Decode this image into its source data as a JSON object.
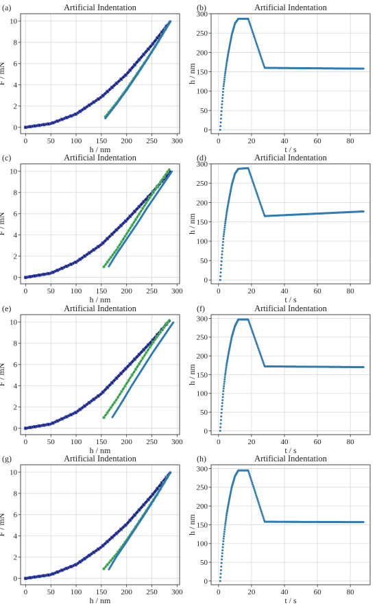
{
  "figure": {
    "panels": [
      {
        "label": "(a)",
        "title": "Artificial Indentation"
      },
      {
        "label": "(b)",
        "title": "Artificial Indentation"
      },
      {
        "label": "(c)",
        "title": "Artificial Indentation"
      },
      {
        "label": "(d)",
        "title": "Artificial Indentation"
      },
      {
        "label": "(e)",
        "title": "Artificial Indentation"
      },
      {
        "label": "(f)",
        "title": "Artificial Indentation"
      },
      {
        "label": "(g)",
        "title": "Artificial Indentation"
      },
      {
        "label": "(h)",
        "title": "Artificial Indentation"
      }
    ]
  },
  "colors": {
    "loading": "#1a237e",
    "loading_marker": "#5060c8",
    "unloading_fit": "#2e9a4a",
    "unloading_fit_marker": "#8ad17a",
    "measured": "#2a78b8",
    "time_series": "#2f7cb5",
    "grid": "#d9d9d9"
  },
  "chart_data": [
    {
      "panel": "(a)",
      "type": "scatter",
      "title": "Artificial Indentation",
      "xlabel": "h / nm",
      "ylabel": "F / mN",
      "xlim": [
        -10,
        305
      ],
      "ylim": [
        -0.6,
        10.7
      ],
      "xticks": [
        0,
        50,
        100,
        150,
        200,
        250,
        300
      ],
      "yticks": [
        0,
        2,
        4,
        6,
        8,
        10
      ],
      "grid": true,
      "series": [
        {
          "role": "loading",
          "x": [
            0,
            50,
            100,
            150,
            200,
            250,
            287
          ],
          "y": [
            0,
            0.35,
            1.25,
            2.85,
            5.0,
            7.75,
            10.0
          ]
        },
        {
          "role": "unloading_fit",
          "x": [
            158,
            180,
            200,
            220,
            240,
            260,
            287
          ],
          "y": [
            1.0,
            2.3,
            3.6,
            5.0,
            6.4,
            7.9,
            10.0
          ]
        },
        {
          "role": "measured",
          "x": [
            158,
            180,
            200,
            220,
            240,
            260,
            287
          ],
          "y": [
            0.85,
            2.2,
            3.5,
            4.9,
            6.35,
            7.85,
            10.0
          ]
        }
      ]
    },
    {
      "panel": "(b)",
      "type": "scatter",
      "title": "Artificial Indentation",
      "xlabel": "t / s",
      "ylabel": "h / nm",
      "xlim": [
        -4.5,
        92
      ],
      "ylim": [
        -10,
        300
      ],
      "xticks": [
        0,
        20,
        40,
        60,
        80
      ],
      "yticks": [
        0,
        50,
        100,
        150,
        200,
        250,
        300
      ],
      "grid": true,
      "series": [
        {
          "role": "time_series",
          "x": [
            1,
            2,
            3,
            4,
            5,
            6,
            8,
            10,
            12,
            18,
            28,
            88
          ],
          "y": [
            0,
            60,
            110,
            145,
            175,
            200,
            245,
            275,
            287,
            287,
            160,
            158
          ]
        }
      ]
    },
    {
      "panel": "(c)",
      "type": "scatter",
      "title": "Artificial Indentation",
      "xlabel": "h / nm",
      "ylabel": "F / mN",
      "xlim": [
        -10,
        305
      ],
      "ylim": [
        -0.6,
        10.7
      ],
      "xticks": [
        0,
        50,
        100,
        150,
        200,
        250,
        300
      ],
      "yticks": [
        0,
        2,
        4,
        6,
        8,
        10
      ],
      "grid": true,
      "series": [
        {
          "role": "loading",
          "x": [
            0,
            50,
            100,
            150,
            200,
            250,
            287
          ],
          "y": [
            0,
            0.4,
            1.45,
            3.1,
            5.4,
            7.95,
            10.0
          ]
        },
        {
          "role": "unloading_fit",
          "x": [
            155,
            180,
            200,
            220,
            240,
            260,
            285
          ],
          "y": [
            1.0,
            2.6,
            4.1,
            5.6,
            7.1,
            8.5,
            10.2
          ]
        },
        {
          "role": "measured",
          "x": [
            165,
            180,
            200,
            220,
            240,
            260,
            290
          ],
          "y": [
            1.05,
            2.2,
            3.6,
            5.0,
            6.5,
            7.9,
            10.0
          ]
        }
      ]
    },
    {
      "panel": "(d)",
      "type": "scatter",
      "title": "Artificial Indentation",
      "xlabel": "t / s",
      "ylabel": "h / nm",
      "xlim": [
        -4.5,
        92
      ],
      "ylim": [
        -10,
        300
      ],
      "xticks": [
        0,
        20,
        40,
        60,
        80
      ],
      "yticks": [
        0,
        50,
        100,
        150,
        200,
        250,
        300
      ],
      "grid": true,
      "series": [
        {
          "role": "time_series",
          "x": [
            1,
            2,
            3,
            4,
            5,
            6,
            8,
            10,
            12,
            18,
            28,
            88
          ],
          "y": [
            0,
            60,
            110,
            145,
            175,
            200,
            245,
            275,
            287,
            289,
            165,
            177
          ]
        }
      ]
    },
    {
      "panel": "(e)",
      "type": "scatter",
      "title": "Artificial Indentation",
      "xlabel": "h / nm",
      "ylabel": "F / mN",
      "xlim": [
        -10,
        305
      ],
      "ylim": [
        -0.6,
        10.7
      ],
      "xticks": [
        0,
        50,
        100,
        150,
        200,
        250,
        300
      ],
      "yticks": [
        0,
        2,
        4,
        6,
        8,
        10
      ],
      "grid": true,
      "series": [
        {
          "role": "loading",
          "x": [
            0,
            50,
            100,
            150,
            200,
            250,
            286
          ],
          "y": [
            0,
            0.4,
            1.5,
            3.25,
            5.7,
            8.2,
            10.2
          ]
        },
        {
          "role": "unloading_fit",
          "x": [
            155,
            180,
            200,
            220,
            240,
            260,
            285
          ],
          "y": [
            1.0,
            2.7,
            4.2,
            5.7,
            7.2,
            8.6,
            10.2
          ]
        },
        {
          "role": "measured",
          "x": [
            172,
            190,
            210,
            230,
            250,
            270,
            293
          ],
          "y": [
            1.05,
            2.4,
            4.0,
            5.5,
            7.0,
            8.4,
            10.0
          ]
        }
      ]
    },
    {
      "panel": "(f)",
      "type": "scatter",
      "title": "Artificial Indentation",
      "xlabel": "t / s",
      "ylabel": "h / nm",
      "xlim": [
        -4.5,
        92
      ],
      "ylim": [
        -10,
        310
      ],
      "xticks": [
        0,
        20,
        40,
        60,
        80
      ],
      "yticks": [
        0,
        50,
        100,
        150,
        200,
        250,
        300
      ],
      "grid": true,
      "series": [
        {
          "role": "time_series",
          "x": [
            1,
            2,
            3,
            4,
            5,
            6,
            8,
            10,
            12,
            18,
            28,
            88
          ],
          "y": [
            0,
            60,
            110,
            148,
            180,
            205,
            250,
            280,
            297,
            297,
            172,
            170
          ]
        }
      ]
    },
    {
      "panel": "(g)",
      "type": "scatter",
      "title": "Artificial Indentation",
      "xlabel": "h / nm",
      "ylabel": "F / mN",
      "xlim": [
        -10,
        305
      ],
      "ylim": [
        -0.6,
        10.7
      ],
      "xticks": [
        0,
        50,
        100,
        150,
        200,
        250,
        300
      ],
      "yticks": [
        0,
        2,
        4,
        6,
        8,
        10
      ],
      "grid": true,
      "series": [
        {
          "role": "loading",
          "x": [
            0,
            50,
            100,
            150,
            200,
            250,
            287
          ],
          "y": [
            0,
            0.35,
            1.3,
            2.95,
            5.1,
            7.8,
            10.0
          ]
        },
        {
          "role": "unloading_fit",
          "x": [
            155,
            180,
            200,
            220,
            240,
            260,
            287
          ],
          "y": [
            0.9,
            2.3,
            3.6,
            5.0,
            6.45,
            7.9,
            10.0
          ]
        },
        {
          "role": "measured",
          "x": [
            165,
            180,
            200,
            220,
            240,
            260,
            287
          ],
          "y": [
            0.85,
            2.05,
            3.45,
            4.9,
            6.35,
            7.85,
            10.0
          ]
        }
      ]
    },
    {
      "panel": "(h)",
      "type": "scatter",
      "title": "Artificial Indentation",
      "xlabel": "t / s",
      "ylabel": "h / nm",
      "xlim": [
        -4.5,
        92
      ],
      "ylim": [
        -10,
        310
      ],
      "xticks": [
        0,
        20,
        40,
        60,
        80
      ],
      "yticks": [
        0,
        50,
        100,
        150,
        200,
        250,
        300
      ],
      "grid": true,
      "series": [
        {
          "role": "time_series",
          "x": [
            1,
            2,
            3,
            4,
            5,
            6,
            8,
            10,
            12,
            18,
            28,
            88
          ],
          "y": [
            0,
            60,
            110,
            148,
            180,
            205,
            250,
            280,
            295,
            295,
            158,
            157
          ]
        }
      ]
    }
  ]
}
